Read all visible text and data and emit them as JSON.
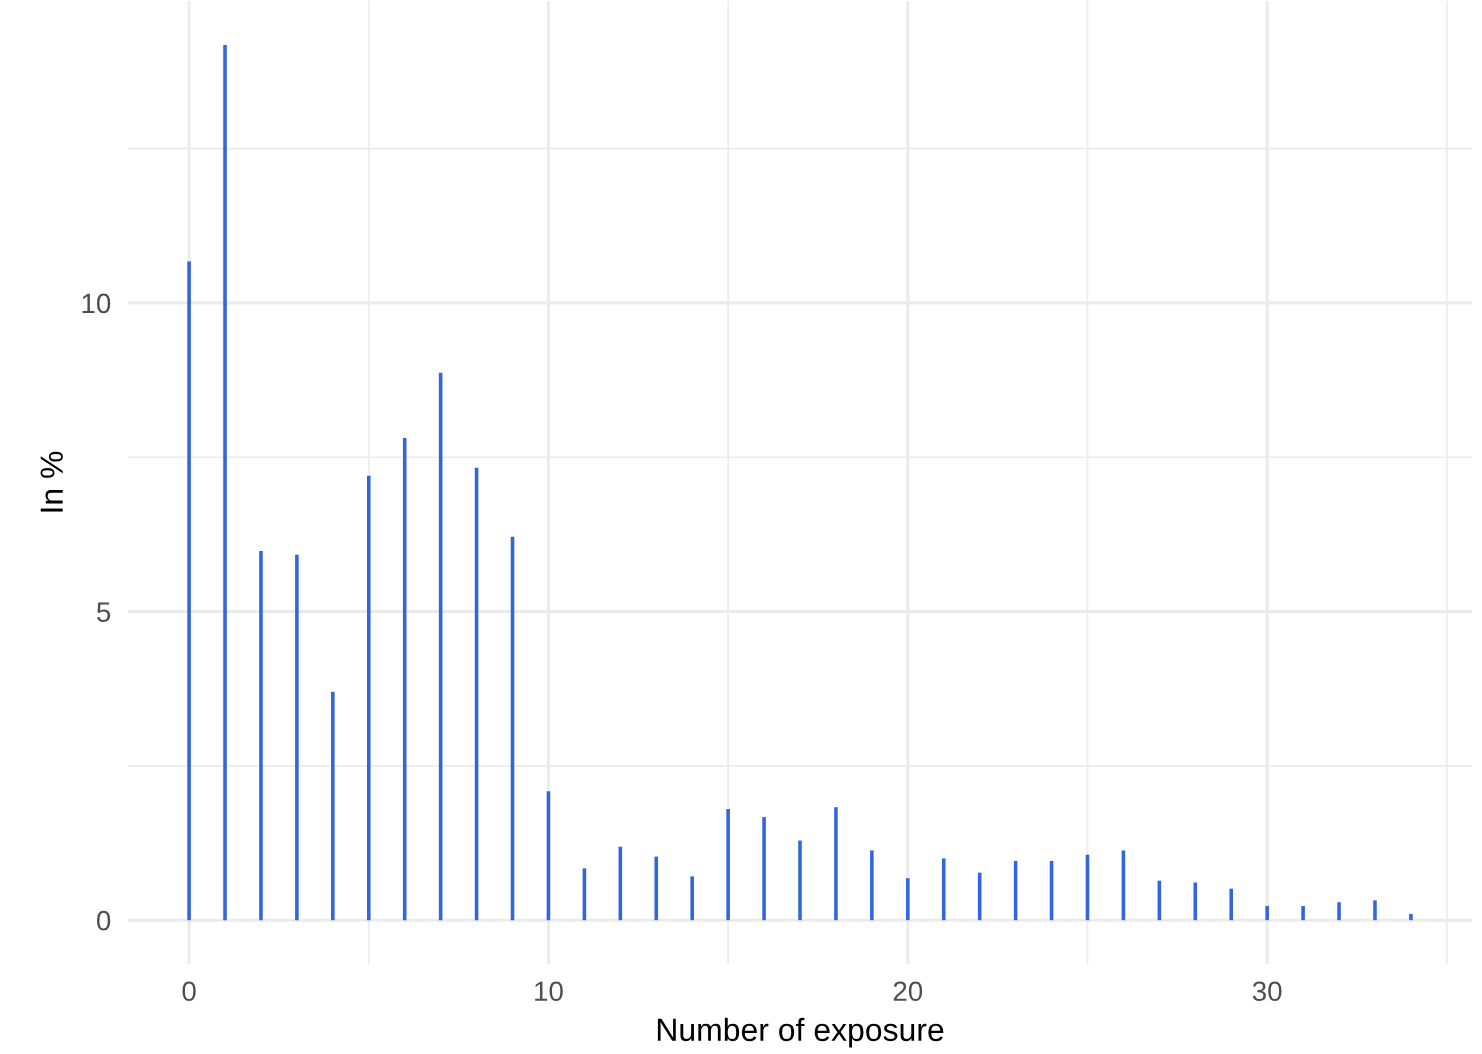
{
  "chart_data": {
    "type": "bar",
    "xlabel": "Number of exposure",
    "ylabel": "In %",
    "x": [
      0,
      1,
      2,
      3,
      4,
      5,
      6,
      7,
      8,
      9,
      10,
      11,
      12,
      13,
      14,
      15,
      16,
      17,
      18,
      19,
      20,
      21,
      22,
      23,
      24,
      25,
      26,
      27,
      28,
      29,
      30,
      31,
      32,
      33,
      34
    ],
    "values": [
      10.67,
      14.18,
      5.98,
      5.92,
      3.7,
      7.2,
      7.81,
      8.87,
      7.33,
      6.21,
      2.09,
      0.84,
      1.19,
      1.03,
      0.71,
      1.8,
      1.67,
      1.29,
      1.83,
      1.13,
      0.68,
      1.0,
      0.77,
      0.96,
      0.96,
      1.06,
      1.13,
      0.64,
      0.61,
      0.51,
      0.23,
      0.23,
      0.29,
      0.32,
      0.1
    ],
    "color": "#3366dd",
    "xlim": [
      -1.7,
      35.7
    ],
    "ylim": [
      -0.71,
      14.89
    ],
    "xticks": [
      0,
      10,
      20,
      30
    ],
    "yticks": [
      0,
      5,
      10
    ],
    "grid": true
  }
}
